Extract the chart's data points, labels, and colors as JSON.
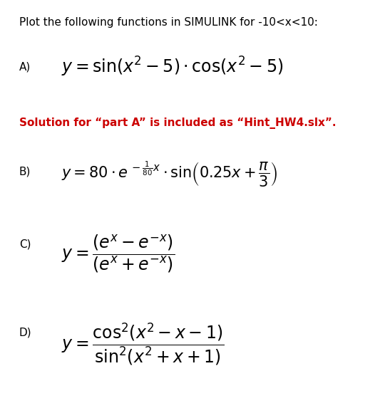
{
  "background_color": "#ffffff",
  "title_text": "Plot the following functions in SIMULINK for -10<x<10:",
  "title_fontsize": 11,
  "title_color": "#000000",
  "hint_text": "Solution for “part A” is included as “Hint_HW4.slx”.",
  "hint_color": "#cc0000",
  "hint_fontsize": 11,
  "label_A": "A)",
  "label_B": "B)",
  "label_C": "C)",
  "label_D": "D)",
  "eq_A": "$y = \\sin\\!\\left(x^2 - 5\\right) \\cdot \\cos\\!\\left(x^2 - 5\\right)$",
  "eq_B_left": "$y = 80 \\cdot e$",
  "eq_B_exp": "$-\\,\\dfrac{1}{80}x$",
  "eq_B_right": "$\\cdot\\, \\sin\\!\\left(0.25x + \\dfrac{\\pi}{3}\\right)$",
  "eq_B_full": "$y = 80 \\cdot e^{\\,-\\frac{1}{80}x} \\cdot \\sin\\!\\left(0.25x + \\dfrac{\\pi}{3}\\right)$",
  "eq_C": "$y = \\dfrac{\\left(e^{x} - e^{-x}\\right)}{\\left(e^{x} + e^{-x}\\right)}$",
  "eq_D": "$y = \\dfrac{\\cos^2\\!\\left(x^2 - x - 1\\right)}{\\sin^2\\!\\left(x^2 + x + 1\\right)}$",
  "label_fontsize": 11,
  "eq_fontsize": 16,
  "eq_C_D_fontsize": 18
}
